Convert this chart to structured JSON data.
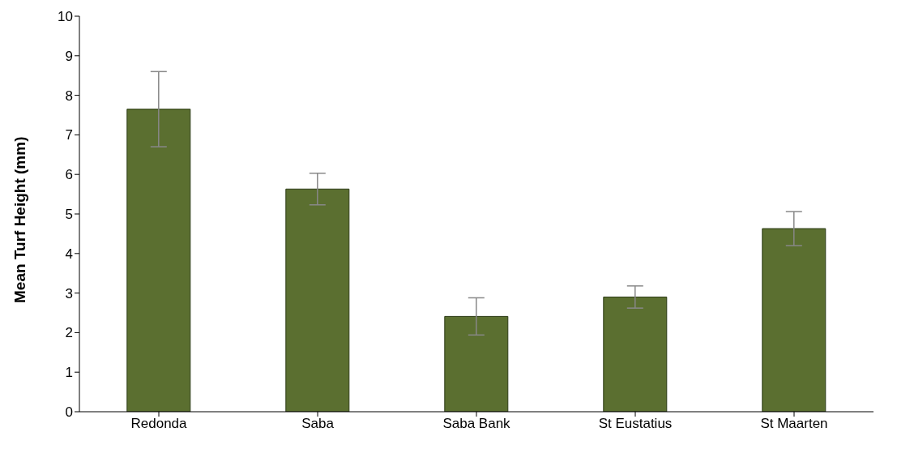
{
  "chart_data": {
    "type": "bar",
    "ylabel": "Mean Turf Height (mm)",
    "categories": [
      "Redonda",
      "Saba",
      "Saba Bank",
      "St Eustatius",
      "St Maarten"
    ],
    "values": [
      7.65,
      5.63,
      2.41,
      2.9,
      4.63
    ],
    "errors": [
      0.95,
      0.4,
      0.47,
      0.28,
      0.43
    ],
    "color": "#5b6f30",
    "ylim": [
      0,
      10
    ],
    "yticks": [
      0,
      1,
      2,
      3,
      4,
      5,
      6,
      7,
      8,
      9,
      10
    ],
    "grid": false
  }
}
